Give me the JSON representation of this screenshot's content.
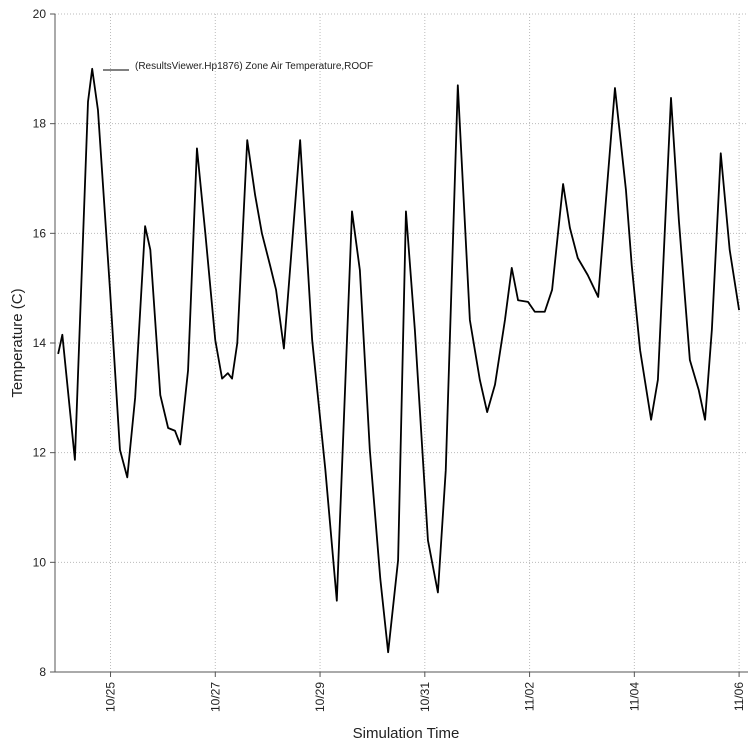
{
  "chart_data": {
    "type": "line",
    "x_label": "Simulation Time",
    "y_label": "Temperature (C)",
    "xlim": [
      -0.06,
      13.17
    ],
    "ylim": [
      8,
      20
    ],
    "xticks": [
      {
        "value": 1,
        "label": "10/25"
      },
      {
        "value": 3,
        "label": "10/27"
      },
      {
        "value": 5,
        "label": "10/29"
      },
      {
        "value": 7,
        "label": "10/31"
      },
      {
        "value": 9,
        "label": "11/02"
      },
      {
        "value": 11,
        "label": "11/04"
      },
      {
        "value": 13,
        "label": "11/06"
      }
    ],
    "yticks": [
      8,
      10,
      12,
      14,
      16,
      18,
      20
    ],
    "grid": true,
    "legend": "top-left",
    "x": [
      0,
      0.08,
      0.32,
      0.57,
      0.65,
      0.76,
      0.99,
      1.18,
      1.32,
      1.47,
      1.66,
      1.76,
      1.95,
      2.1,
      2.23,
      2.33,
      2.48,
      2.65,
      2.81,
      3.0,
      3.13,
      3.24,
      3.32,
      3.42,
      3.61,
      3.76,
      3.89,
      4.05,
      4.16,
      4.31,
      4.62,
      4.85,
      5.1,
      5.32,
      5.61,
      5.76,
      5.95,
      6.15,
      6.3,
      6.49,
      6.64,
      6.81,
      7.06,
      7.25,
      7.4,
      7.63,
      7.86,
      8.05,
      8.19,
      8.34,
      8.53,
      8.66,
      8.78,
      8.97,
      9.1,
      9.29,
      9.43,
      9.64,
      9.77,
      9.92,
      10.11,
      10.31,
      10.63,
      10.84,
      10.95,
      11.11,
      11.32,
      11.45,
      11.7,
      11.85,
      12.06,
      12.23,
      12.35,
      12.48,
      12.65,
      12.82,
      13.0
    ],
    "series": [
      {
        "name": "(ResultsViewer.Hp1876) Zone Air Temperature,ROOF",
        "color": "#000000",
        "values": [
          13.8,
          14.15,
          11.87,
          18.4,
          19.0,
          18.25,
          14.97,
          12.05,
          11.55,
          13.0,
          16.13,
          15.7,
          13.05,
          12.45,
          12.4,
          12.15,
          13.5,
          17.55,
          16.0,
          14.05,
          13.35,
          13.45,
          13.35,
          14.0,
          17.7,
          16.7,
          16.0,
          15.4,
          14.97,
          13.9,
          17.7,
          14.05,
          11.7,
          9.3,
          16.4,
          15.33,
          12.05,
          9.7,
          8.36,
          10.04,
          16.4,
          14.24,
          10.4,
          9.45,
          11.68,
          18.7,
          14.42,
          13.33,
          12.74,
          13.24,
          14.42,
          15.37,
          14.78,
          14.75,
          14.57,
          14.57,
          14.97,
          16.9,
          16.1,
          15.55,
          15.24,
          14.84,
          18.65,
          16.79,
          15.42,
          13.87,
          12.6,
          13.33,
          18.47,
          16.24,
          13.69,
          13.14,
          12.6,
          14.24,
          17.46,
          15.7,
          14.6
        ]
      }
    ]
  }
}
